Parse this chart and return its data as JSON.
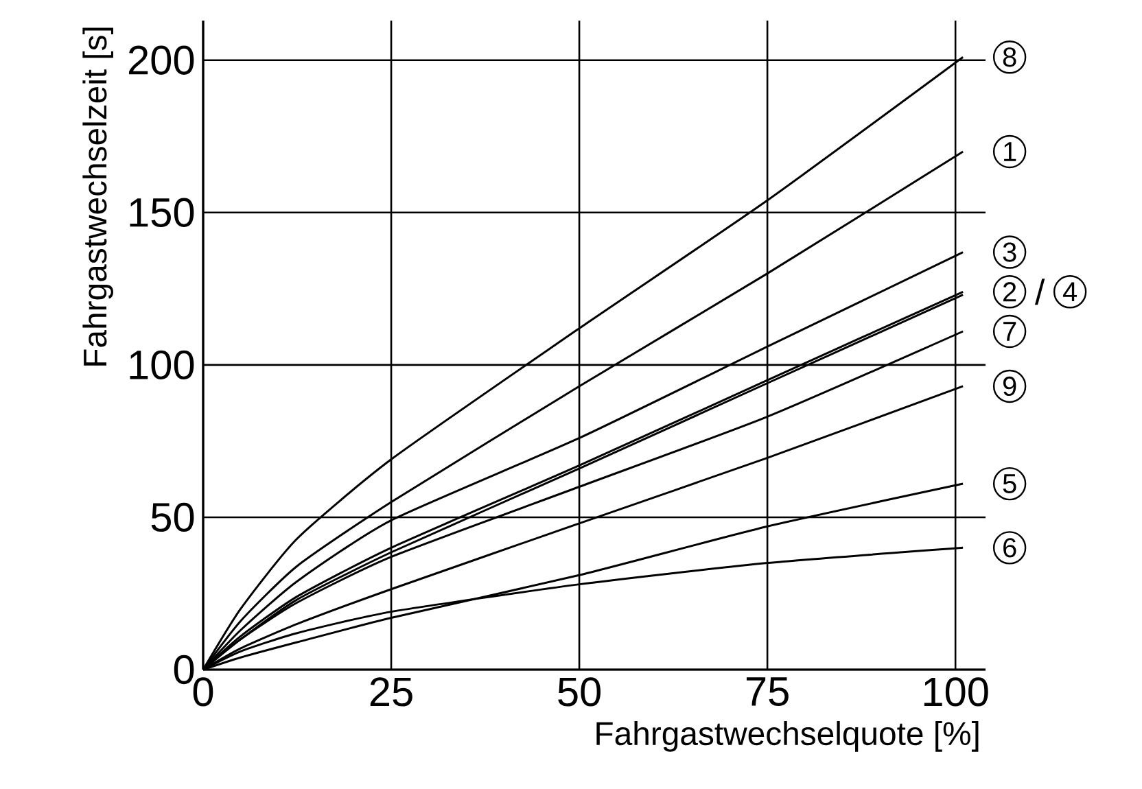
{
  "chart_data": {
    "type": "line",
    "xlabel": "Fahrgastwechselquote [%]",
    "ylabel": "Fahrgastwechselzeit [s]",
    "xlim": [
      0,
      104
    ],
    "ylim": [
      0,
      213
    ],
    "xticks": [
      0,
      25,
      50,
      75,
      100
    ],
    "yticks": [
      0,
      50,
      100,
      150,
      200
    ],
    "grid": true,
    "legend": "right",
    "marker": "none",
    "line_style": "solid",
    "x": [
      0,
      5,
      12.5,
      25,
      50,
      75,
      101
    ],
    "series": [
      {
        "name": "8",
        "color": "#000000",
        "values": [
          0,
          20,
          43,
          69,
          112,
          154,
          201
        ]
      },
      {
        "name": "1",
        "color": "#000000",
        "values": [
          0,
          16,
          34,
          55,
          93,
          130,
          170
        ]
      },
      {
        "name": "3",
        "color": "#000000",
        "values": [
          0,
          13,
          29,
          49,
          76,
          106,
          137
        ]
      },
      {
        "name": "2",
        "color": "#000000",
        "values": [
          0,
          11,
          24,
          40,
          67,
          95,
          124
        ]
      },
      {
        "name": "4",
        "color": "#000000",
        "values": [
          0,
          10,
          23,
          38.5,
          66,
          94,
          123
        ]
      },
      {
        "name": "7",
        "color": "#000000",
        "values": [
          0,
          10,
          22,
          37,
          60,
          83,
          111
        ]
      },
      {
        "name": "9",
        "color": "#000000",
        "values": [
          0,
          7,
          15,
          26.4,
          48,
          69.5,
          93
        ]
      },
      {
        "name": "5",
        "color": "#000000",
        "values": [
          0,
          4,
          9,
          17,
          31,
          47,
          61
        ]
      },
      {
        "name": "6",
        "color": "#000000",
        "values": [
          0,
          6,
          12,
          19,
          28,
          35,
          40
        ]
      }
    ],
    "annotations": [
      "/"
    ]
  }
}
